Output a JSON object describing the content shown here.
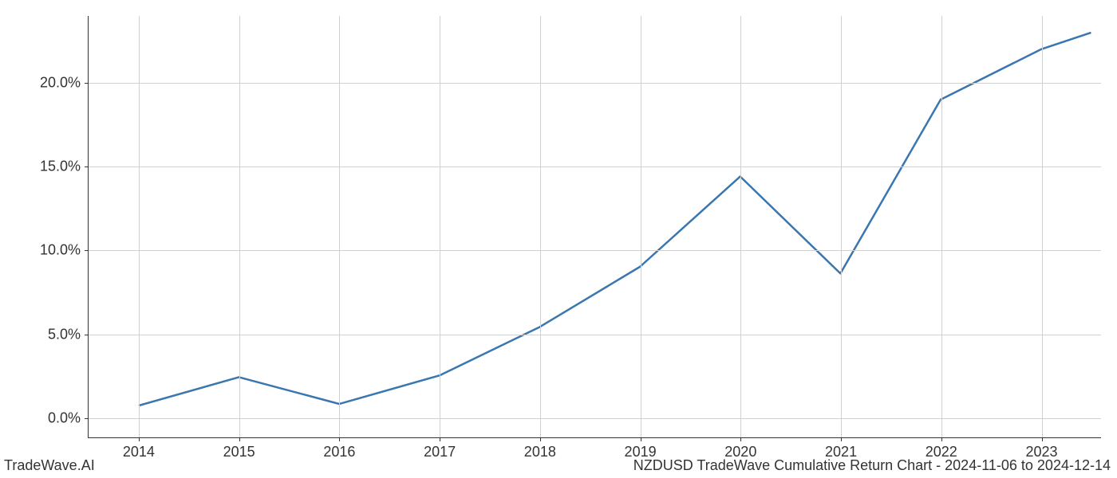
{
  "chart": {
    "type": "line",
    "x_values": [
      2014,
      2015,
      2016,
      2017,
      2018,
      2019,
      2020,
      2021,
      2022,
      2023,
      2023.5
    ],
    "y_values": [
      0.7,
      2.4,
      0.8,
      2.5,
      5.4,
      9.0,
      14.4,
      8.6,
      19.0,
      22.0,
      23.0
    ],
    "line_color": "#3a76af",
    "line_width": 2.5,
    "background_color": "#ffffff",
    "grid_color": "#d0d0d0",
    "axis_color": "#333333",
    "xlim": [
      2013.5,
      2023.6
    ],
    "ylim": [
      -1.2,
      24.0
    ],
    "x_ticks": [
      2014,
      2015,
      2016,
      2017,
      2018,
      2019,
      2020,
      2021,
      2022,
      2023
    ],
    "x_tick_labels": [
      "2014",
      "2015",
      "2016",
      "2017",
      "2018",
      "2019",
      "2020",
      "2021",
      "2022",
      "2023"
    ],
    "y_ticks": [
      0,
      5,
      10,
      15,
      20
    ],
    "y_tick_labels": [
      "0.0%",
      "5.0%",
      "10.0%",
      "15.0%",
      "20.0%"
    ],
    "tick_fontsize": 18,
    "label_color": "#333333"
  },
  "footer": {
    "left": "TradeWave.AI",
    "right": "NZDUSD TradeWave Cumulative Return Chart - 2024-11-06 to 2024-12-14",
    "fontsize": 18,
    "color": "#333333"
  }
}
